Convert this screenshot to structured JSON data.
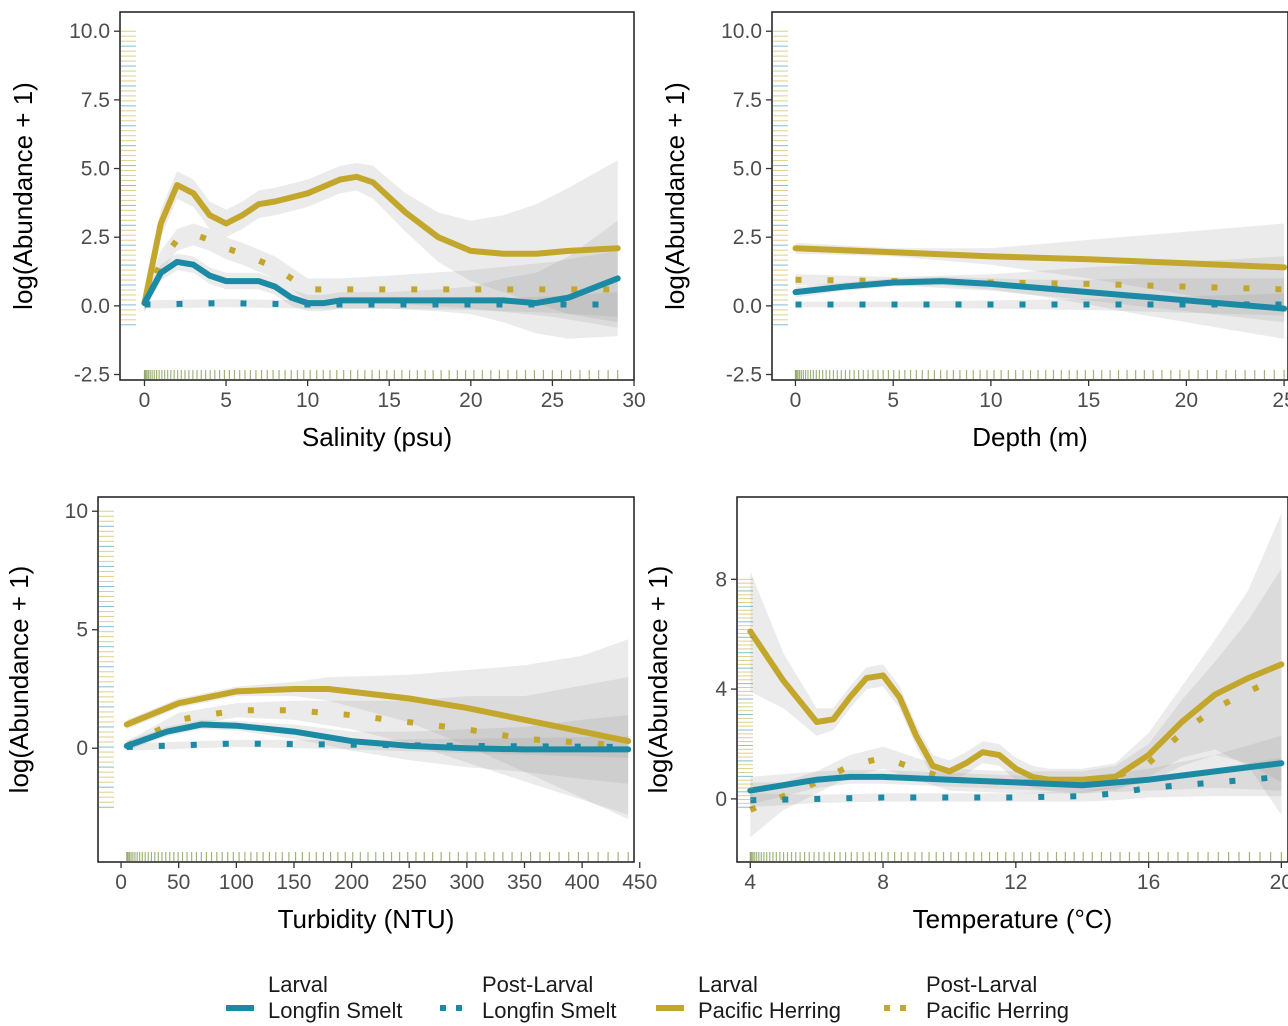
{
  "colors": {
    "longfin": "#1b8aa5",
    "herring": "#c3a72c",
    "rug": "#8aa05a",
    "ribbon": "#999999"
  },
  "legend": {
    "items": [
      {
        "stage": "Larval",
        "species": "Longfin Smelt",
        "color": "#1b8aa5",
        "linetype": "solid"
      },
      {
        "stage": "Post-Larval",
        "species": "Longfin Smelt",
        "color": "#1b8aa5",
        "linetype": "dotted"
      },
      {
        "stage": "Larval",
        "species": "Pacific Herring",
        "color": "#c3a72c",
        "linetype": "solid"
      },
      {
        "stage": "Post-Larval",
        "species": "Pacific Herring",
        "color": "#c3a72c",
        "linetype": "dotted"
      }
    ]
  },
  "chart_data": [
    {
      "type": "line",
      "xlabel": "Salinity (psu)",
      "ylabel": "log(Abundance + 1)",
      "xlim": [
        -1.5,
        30
      ],
      "ylim": [
        -2.7,
        10.7
      ],
      "xticks": [
        0,
        5,
        10,
        15,
        20,
        25,
        30
      ],
      "yticks": [
        -2.5,
        0.0,
        2.5,
        5.0,
        7.5,
        10.0
      ],
      "ytick_labels": [
        "-2.5",
        "0.0",
        "2.5",
        "5.0",
        "7.5",
        "10.0"
      ],
      "grid": false,
      "series": [
        {
          "stage": "Larval",
          "species": "Pacific Herring",
          "linetype": "solid",
          "x": [
            0,
            1,
            2,
            3,
            4,
            5,
            6,
            7,
            8,
            10,
            12,
            13,
            14,
            16,
            18,
            20,
            22,
            24,
            26,
            29
          ],
          "y": [
            0.1,
            3.0,
            4.4,
            4.1,
            3.3,
            3.0,
            3.3,
            3.7,
            3.8,
            4.1,
            4.6,
            4.7,
            4.5,
            3.4,
            2.5,
            2.0,
            1.9,
            1.9,
            2.0,
            2.1
          ],
          "lower": [
            -0.3,
            2.5,
            3.9,
            3.6,
            2.8,
            2.5,
            2.8,
            3.2,
            3.3,
            3.6,
            4.1,
            4.2,
            3.9,
            2.7,
            1.6,
            0.9,
            0.5,
            0.1,
            -0.3,
            -0.6
          ],
          "upper": [
            0.5,
            3.5,
            4.9,
            4.6,
            3.8,
            3.5,
            3.8,
            4.2,
            4.3,
            4.6,
            5.1,
            5.2,
            5.1,
            4.1,
            3.4,
            3.1,
            3.3,
            3.7,
            4.3,
            5.3
          ]
        },
        {
          "stage": "Post-Larval",
          "species": "Pacific Herring",
          "linetype": "dotted",
          "x": [
            0,
            1,
            2,
            3,
            4,
            5,
            6,
            8,
            10,
            12,
            15,
            20,
            25,
            29
          ],
          "y": [
            0.1,
            1.6,
            2.4,
            2.6,
            2.4,
            2.1,
            1.9,
            1.4,
            0.6,
            0.6,
            0.6,
            0.6,
            0.6,
            0.6
          ],
          "lower": [
            -0.2,
            1.2,
            2.0,
            2.2,
            2.0,
            1.7,
            1.5,
            1.0,
            0.2,
            0.2,
            0.1,
            -0.1,
            -0.4,
            -0.8
          ],
          "upper": [
            0.4,
            2.0,
            2.8,
            3.0,
            2.8,
            2.5,
            2.3,
            1.8,
            1.0,
            1.0,
            1.1,
            1.3,
            1.6,
            2.0
          ]
        },
        {
          "stage": "Larval",
          "species": "Longfin Smelt",
          "linetype": "solid",
          "x": [
            0,
            1,
            2,
            3,
            4,
            5,
            6,
            7,
            8,
            9,
            10,
            11,
            12,
            15,
            18,
            20,
            22,
            24,
            26,
            29
          ],
          "y": [
            0.1,
            1.2,
            1.6,
            1.5,
            1.1,
            0.9,
            0.9,
            0.9,
            0.7,
            0.3,
            0.1,
            0.1,
            0.2,
            0.2,
            0.2,
            0.2,
            0.2,
            0.1,
            0.3,
            1.0
          ],
          "lower": [
            -0.2,
            0.9,
            1.3,
            1.2,
            0.8,
            0.6,
            0.6,
            0.6,
            0.4,
            0.0,
            -0.2,
            -0.2,
            -0.1,
            -0.1,
            -0.2,
            -0.3,
            -0.6,
            -1.0,
            -1.2,
            -1.1
          ],
          "upper": [
            0.4,
            1.5,
            1.9,
            1.8,
            1.4,
            1.2,
            1.2,
            1.2,
            1.0,
            0.6,
            0.4,
            0.4,
            0.5,
            0.5,
            0.6,
            0.7,
            1.0,
            1.2,
            1.8,
            3.1
          ]
        },
        {
          "stage": "Post-Larval",
          "species": "Longfin Smelt",
          "linetype": "dotted",
          "x": [
            0,
            5,
            10,
            15,
            20,
            25,
            29
          ],
          "y": [
            0.05,
            0.1,
            0.05,
            0.05,
            0.05,
            0.05,
            0.05
          ],
          "lower": [
            -0.1,
            -0.05,
            -0.1,
            -0.1,
            -0.15,
            -0.25,
            -0.4
          ],
          "upper": [
            0.2,
            0.25,
            0.2,
            0.2,
            0.25,
            0.35,
            0.5
          ]
        }
      ]
    },
    {
      "type": "line",
      "xlabel": "Depth (m)",
      "ylabel": "log(Abundance + 1)",
      "xlim": [
        -1.2,
        25.2
      ],
      "ylim": [
        -2.7,
        10.7
      ],
      "xticks": [
        0,
        5,
        10,
        15,
        20,
        25
      ],
      "yticks": [
        -2.5,
        0.0,
        2.5,
        5.0,
        7.5,
        10.0
      ],
      "ytick_labels": [
        "-2.5",
        "0.0",
        "2.5",
        "5.0",
        "7.5",
        "10.0"
      ],
      "grid": false,
      "series": [
        {
          "stage": "Larval",
          "species": "Pacific Herring",
          "linetype": "solid",
          "x": [
            0,
            5,
            10,
            15,
            20,
            25
          ],
          "y": [
            2.1,
            1.95,
            1.8,
            1.7,
            1.55,
            1.4
          ],
          "lower": [
            1.9,
            1.8,
            1.5,
            1.0,
            0.4,
            -0.2
          ],
          "upper": [
            2.3,
            2.1,
            2.1,
            2.4,
            2.7,
            3.0
          ]
        },
        {
          "stage": "Post-Larval",
          "species": "Pacific Herring",
          "linetype": "dotted",
          "x": [
            0,
            5,
            10,
            15,
            20,
            25
          ],
          "y": [
            0.95,
            0.9,
            0.85,
            0.8,
            0.7,
            0.6
          ],
          "lower": [
            0.75,
            0.75,
            0.55,
            0.2,
            -0.2,
            -0.6
          ],
          "upper": [
            1.15,
            1.05,
            1.15,
            1.4,
            1.6,
            1.8
          ]
        },
        {
          "stage": "Larval",
          "species": "Longfin Smelt",
          "linetype": "solid",
          "x": [
            0,
            2.5,
            5,
            7.5,
            10,
            12.5,
            15,
            17.5,
            20,
            22.5,
            25
          ],
          "y": [
            0.5,
            0.7,
            0.85,
            0.9,
            0.8,
            0.65,
            0.5,
            0.35,
            0.2,
            0.05,
            -0.1
          ],
          "lower": [
            0.3,
            0.55,
            0.7,
            0.75,
            0.6,
            0.35,
            0.05,
            -0.3,
            -0.6,
            -0.9,
            -1.2
          ],
          "upper": [
            0.7,
            0.85,
            1.0,
            1.05,
            1.0,
            0.95,
            0.95,
            1.0,
            1.0,
            1.0,
            1.0
          ]
        },
        {
          "stage": "Post-Larval",
          "species": "Longfin Smelt",
          "linetype": "dotted",
          "x": [
            0,
            5,
            10,
            15,
            20,
            25
          ],
          "y": [
            0.05,
            0.05,
            0.05,
            0.05,
            0.05,
            0.05
          ],
          "lower": [
            -0.05,
            -0.05,
            -0.1,
            -0.15,
            -0.25,
            -0.35
          ],
          "upper": [
            0.15,
            0.15,
            0.2,
            0.25,
            0.35,
            0.45
          ]
        }
      ]
    },
    {
      "type": "line",
      "xlabel": "Turbidity (NTU)",
      "ylabel": "log(Abundance + 1)",
      "xlim": [
        -20,
        445
      ],
      "ylim": [
        -4.8,
        10.6
      ],
      "xticks": [
        0,
        50,
        100,
        150,
        200,
        250,
        300,
        350,
        400,
        450
      ],
      "yticks": [
        0,
        5,
        10
      ],
      "ytick_labels": [
        "0",
        "5",
        "10"
      ],
      "grid": false,
      "series": [
        {
          "stage": "Larval",
          "species": "Pacific Herring",
          "linetype": "solid",
          "x": [
            5,
            50,
            100,
            150,
            180,
            250,
            300,
            350,
            400,
            440
          ],
          "y": [
            1.0,
            1.9,
            2.4,
            2.5,
            2.5,
            2.1,
            1.7,
            1.2,
            0.7,
            0.3
          ],
          "lower": [
            0.8,
            1.7,
            2.2,
            2.2,
            2.0,
            1.1,
            0.1,
            -1.0,
            -2.1,
            -3.0
          ],
          "upper": [
            1.2,
            2.1,
            2.6,
            2.8,
            3.0,
            3.1,
            3.3,
            3.5,
            3.9,
            4.6
          ]
        },
        {
          "stage": "Post-Larval",
          "species": "Pacific Herring",
          "linetype": "dotted",
          "x": [
            5,
            50,
            100,
            150,
            200,
            250,
            300,
            350,
            440
          ],
          "y": [
            0.1,
            1.2,
            1.6,
            1.6,
            1.4,
            1.1,
            0.8,
            0.4,
            0.1
          ],
          "lower": [
            -0.1,
            0.9,
            1.3,
            1.2,
            0.8,
            0.2,
            -0.6,
            -1.4,
            -2.8
          ],
          "upper": [
            0.3,
            1.5,
            1.9,
            2.0,
            2.0,
            2.0,
            2.2,
            2.2,
            3.0
          ]
        },
        {
          "stage": "Larval",
          "species": "Longfin Smelt",
          "linetype": "solid",
          "x": [
            5,
            40,
            70,
            100,
            150,
            200,
            250,
            300,
            350,
            400,
            440
          ],
          "y": [
            0.1,
            0.7,
            1.0,
            0.95,
            0.7,
            0.3,
            0.1,
            0.0,
            -0.05,
            -0.05,
            -0.05
          ],
          "lower": [
            -0.1,
            0.5,
            0.8,
            0.75,
            0.4,
            -0.1,
            -0.5,
            -0.8,
            -1.0,
            -1.3,
            -1.5
          ],
          "upper": [
            0.3,
            0.9,
            1.2,
            1.15,
            1.0,
            0.7,
            0.7,
            0.8,
            0.9,
            1.2,
            1.4
          ]
        },
        {
          "stage": "Post-Larval",
          "species": "Longfin Smelt",
          "linetype": "dotted",
          "x": [
            5,
            100,
            200,
            300,
            440
          ],
          "y": [
            0.05,
            0.2,
            0.15,
            0.1,
            0.05
          ],
          "lower": [
            -0.1,
            0.05,
            -0.05,
            -0.2,
            -0.4
          ],
          "upper": [
            0.2,
            0.35,
            0.35,
            0.4,
            0.5
          ]
        }
      ]
    },
    {
      "type": "line",
      "xlabel": "Temperature (°C)",
      "ylabel": "log(Abundance + 1)",
      "xlim": [
        3.6,
        20.2
      ],
      "ylim": [
        -2.3,
        11.0
      ],
      "xticks": [
        4,
        8,
        12,
        16,
        20
      ],
      "yticks": [
        0,
        4,
        8
      ],
      "ytick_labels": [
        "0",
        "4",
        "8"
      ],
      "grid": false,
      "series": [
        {
          "stage": "Larval",
          "species": "Pacific Herring",
          "linetype": "solid",
          "x": [
            4,
            5,
            6,
            6.5,
            7,
            7.5,
            8,
            8.5,
            9,
            9.5,
            10,
            10.5,
            11,
            11.5,
            12,
            12.5,
            13,
            14,
            15,
            16,
            17,
            18,
            19,
            20
          ],
          "y": [
            6.1,
            4.3,
            2.8,
            2.9,
            3.7,
            4.4,
            4.5,
            3.7,
            2.3,
            1.2,
            1.0,
            1.3,
            1.7,
            1.6,
            1.1,
            0.8,
            0.7,
            0.7,
            0.8,
            1.6,
            2.8,
            3.8,
            4.4,
            4.9
          ],
          "lower": [
            3.9,
            3.3,
            2.3,
            2.5,
            3.3,
            4.0,
            4.1,
            3.3,
            1.9,
            0.8,
            0.6,
            0.9,
            1.3,
            1.2,
            0.7,
            0.4,
            0.3,
            0.3,
            0.3,
            0.8,
            1.5,
            1.8,
            1.2,
            -0.6
          ],
          "upper": [
            8.3,
            5.3,
            3.3,
            3.3,
            4.1,
            4.8,
            4.9,
            4.1,
            2.7,
            1.6,
            1.4,
            1.7,
            2.1,
            2.0,
            1.5,
            1.2,
            1.1,
            1.1,
            1.3,
            2.4,
            4.1,
            5.8,
            7.6,
            10.4
          ]
        },
        {
          "stage": "Post-Larval",
          "species": "Pacific Herring",
          "linetype": "dotted",
          "x": [
            4,
            5,
            6,
            7,
            8,
            9,
            10,
            12,
            14,
            15,
            16,
            17,
            18,
            19,
            20
          ],
          "y": [
            -0.4,
            0.1,
            0.6,
            1.2,
            1.5,
            1.1,
            0.7,
            0.6,
            0.6,
            0.8,
            1.3,
            2.4,
            3.3,
            3.9,
            4.5
          ],
          "lower": [
            -1.4,
            -0.4,
            0.2,
            0.8,
            1.1,
            0.7,
            0.3,
            0.2,
            0.2,
            0.4,
            0.6,
            1.2,
            1.6,
            1.3,
            0.6
          ],
          "upper": [
            0.6,
            0.6,
            1.0,
            1.6,
            1.9,
            1.5,
            1.1,
            1.0,
            1.0,
            1.2,
            2.0,
            3.6,
            5.0,
            6.5,
            8.4
          ]
        },
        {
          "stage": "Larval",
          "species": "Longfin Smelt",
          "linetype": "solid",
          "x": [
            4,
            6,
            7,
            8,
            10,
            12,
            14,
            16,
            18,
            20
          ],
          "y": [
            0.3,
            0.7,
            0.8,
            0.8,
            0.7,
            0.6,
            0.5,
            0.7,
            1.0,
            1.3
          ],
          "lower": [
            -0.2,
            0.4,
            0.55,
            0.55,
            0.45,
            0.35,
            0.2,
            0.3,
            0.4,
            0.3
          ],
          "upper": [
            0.8,
            1.0,
            1.05,
            1.05,
            0.95,
            0.85,
            0.8,
            1.1,
            1.6,
            2.3
          ]
        },
        {
          "stage": "Post-Larval",
          "species": "Longfin Smelt",
          "linetype": "dotted",
          "x": [
            4,
            6,
            8,
            10,
            12,
            14,
            15,
            16,
            18,
            20
          ],
          "y": [
            -0.05,
            0.0,
            0.05,
            0.05,
            0.05,
            0.1,
            0.2,
            0.4,
            0.6,
            0.8
          ],
          "lower": [
            -0.3,
            -0.15,
            -0.1,
            -0.1,
            -0.1,
            -0.1,
            -0.05,
            0.05,
            0.1,
            0.1
          ],
          "upper": [
            0.2,
            0.15,
            0.2,
            0.2,
            0.2,
            0.3,
            0.45,
            0.75,
            1.1,
            1.5
          ]
        }
      ]
    }
  ]
}
